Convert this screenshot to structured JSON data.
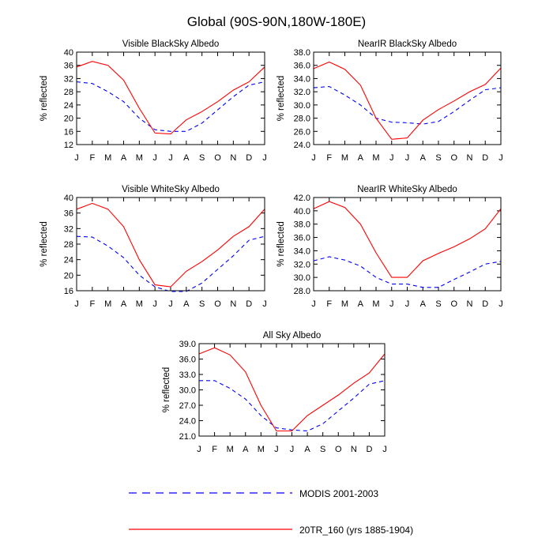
{
  "figure_title": "Global (90S-90N,180W-180E)",
  "legend": {
    "modis_label": "MODIS 2001-2003",
    "model_label": "20TR_160 (yrs 1885-1904)",
    "modis_color": "#0000ff",
    "model_color": "#ff0000"
  },
  "chart_data": [
    {
      "type": "line",
      "title": "Visible BlackSky Albedo",
      "ylabel": "% reflected",
      "xlabel": "",
      "x": [
        "J",
        "F",
        "M",
        "A",
        "M",
        "J",
        "J",
        "A",
        "S",
        "O",
        "N",
        "D",
        "J"
      ],
      "ylim": [
        12,
        40
      ],
      "yticks": [
        "12",
        "16",
        "20",
        "24",
        "28",
        "32",
        "36",
        "40"
      ],
      "series": [
        {
          "name": "MODIS 2001-2003",
          "values": [
            31.0,
            30.5,
            28.0,
            25.0,
            20.0,
            16.5,
            16.0,
            16.0,
            18.5,
            22.5,
            26.5,
            30.0,
            31.0
          ]
        },
        {
          "name": "20TR_160 (yrs 1885-1904)",
          "values": [
            35.5,
            37.2,
            36.0,
            31.5,
            23.0,
            15.5,
            15.2,
            19.5,
            22.0,
            25.0,
            28.5,
            31.0,
            35.5
          ]
        }
      ]
    },
    {
      "type": "line",
      "title": "NearIR BlackSky Albedo",
      "ylabel": "% reflected",
      "xlabel": "",
      "x": [
        "J",
        "F",
        "M",
        "A",
        "M",
        "J",
        "J",
        "A",
        "S",
        "O",
        "N",
        "D",
        "J"
      ],
      "ylim": [
        24,
        38
      ],
      "yticks": [
        "24.0",
        "26.0",
        "28.0",
        "30.0",
        "32.0",
        "34.0",
        "36.0",
        "38.0"
      ],
      "series": [
        {
          "name": "MODIS 2001-2003",
          "values": [
            32.6,
            32.8,
            31.5,
            30.0,
            28.0,
            27.4,
            27.3,
            27.1,
            27.5,
            29.0,
            30.7,
            32.3,
            32.6
          ]
        },
        {
          "name": "20TR_160 (yrs 1885-1904)",
          "values": [
            35.5,
            36.5,
            35.4,
            33.0,
            28.0,
            24.8,
            25.0,
            27.7,
            29.3,
            30.6,
            32.0,
            33.1,
            35.6
          ]
        }
      ]
    },
    {
      "type": "line",
      "title": "Visible WhiteSky Albedo",
      "ylabel": "% reflected",
      "xlabel": "",
      "x": [
        "J",
        "F",
        "M",
        "A",
        "M",
        "J",
        "J",
        "A",
        "S",
        "O",
        "N",
        "D",
        "J"
      ],
      "ylim": [
        16,
        40
      ],
      "yticks": [
        "16",
        "20",
        "24",
        "28",
        "32",
        "36",
        "40"
      ],
      "series": [
        {
          "name": "MODIS 2001-2003",
          "values": [
            30.0,
            29.8,
            27.5,
            24.5,
            20.0,
            17.0,
            15.8,
            15.8,
            18.0,
            21.5,
            25.0,
            29.0,
            30.0
          ]
        },
        {
          "name": "20TR_160 (yrs 1885-1904)",
          "values": [
            37.0,
            38.5,
            37.0,
            32.5,
            24.0,
            17.5,
            17.0,
            21.0,
            23.5,
            26.5,
            30.0,
            32.5,
            37.0
          ]
        }
      ]
    },
    {
      "type": "line",
      "title": "NearIR WhiteSky Albedo",
      "ylabel": "% reflected",
      "xlabel": "",
      "x": [
        "J",
        "F",
        "M",
        "A",
        "M",
        "J",
        "J",
        "A",
        "S",
        "O",
        "N",
        "D",
        "J"
      ],
      "ylim": [
        28,
        42
      ],
      "yticks": [
        "28.0",
        "30.0",
        "32.0",
        "34.0",
        "36.0",
        "38.0",
        "40.0",
        "42.0"
      ],
      "series": [
        {
          "name": "MODIS 2001-2003",
          "values": [
            32.5,
            33.1,
            32.6,
            31.7,
            30.0,
            29.0,
            29.0,
            28.5,
            28.5,
            29.7,
            30.8,
            32.0,
            32.4
          ]
        },
        {
          "name": "20TR_160 (yrs 1885-1904)",
          "values": [
            40.3,
            41.4,
            40.5,
            38.0,
            33.7,
            30.0,
            30.0,
            32.5,
            33.6,
            34.6,
            35.8,
            37.3,
            40.3
          ]
        }
      ]
    },
    {
      "type": "line",
      "title": "All Sky Albedo",
      "ylabel": "% reflected",
      "xlabel": "",
      "x": [
        "J",
        "F",
        "M",
        "A",
        "M",
        "J",
        "J",
        "A",
        "S",
        "O",
        "N",
        "D",
        "J"
      ],
      "ylim": [
        21,
        39
      ],
      "yticks": [
        "21.0",
        "24.0",
        "27.0",
        "30.0",
        "33.0",
        "36.0",
        "39.0"
      ],
      "series": [
        {
          "name": "MODIS 2001-2003",
          "values": [
            31.8,
            31.8,
            30.3,
            28.2,
            25.0,
            22.6,
            22.2,
            22.0,
            23.4,
            25.9,
            28.4,
            31.1,
            31.8
          ]
        },
        {
          "name": "20TR_160 (yrs 1885-1904)",
          "values": [
            37.0,
            38.2,
            36.8,
            33.5,
            27.0,
            22.0,
            22.0,
            25.0,
            27.0,
            29.0,
            31.3,
            33.3,
            37.0
          ]
        }
      ]
    }
  ]
}
